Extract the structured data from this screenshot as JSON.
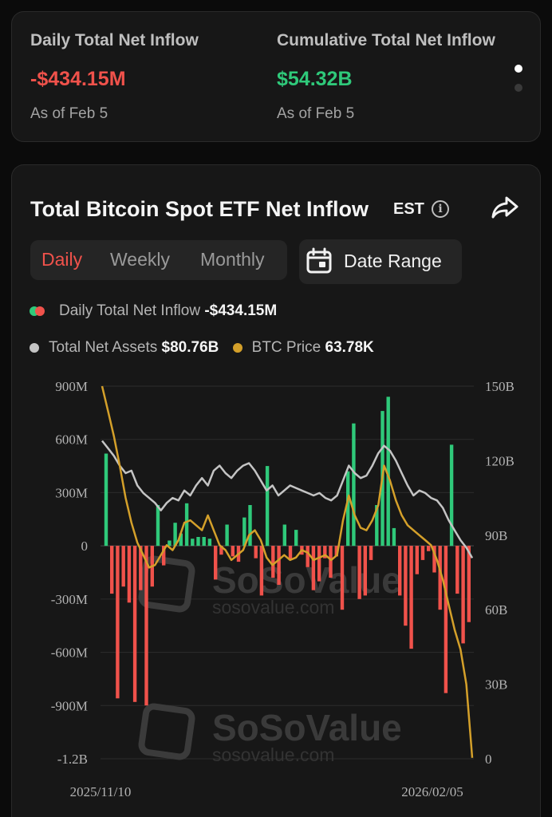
{
  "summary": {
    "daily": {
      "title": "Daily Total Net Inflow",
      "value": "-$434.15M",
      "date": "As of Feb 5"
    },
    "cumulative": {
      "title": "Cumulative Total Net Inflow",
      "value": "$54.32B",
      "date": "As of Feb 5"
    }
  },
  "chart_header": {
    "title": "Total Bitcoin Spot ETF Net Inflow",
    "timezone": "EST",
    "info_icon": "info-icon",
    "share_icon": "share-icon"
  },
  "tabs": [
    "Daily",
    "Weekly",
    "Monthly"
  ],
  "active_tab": "Daily",
  "date_range_label": "Date Range",
  "legend": {
    "inflow_label": "Daily Total Net Inflow",
    "inflow_value": "-$434.15M",
    "assets_label": "Total Net Assets",
    "assets_value": "$80.76B",
    "btc_label": "BTC Price",
    "btc_value": "63.78K"
  },
  "watermark": {
    "brand": "SoSoValue",
    "url": "sosovalue.com"
  },
  "colors": {
    "positive": "#2fc97a",
    "negative": "#f0524b",
    "assets_line": "#c4c4c4",
    "btc_line": "#d4a02a"
  },
  "chart_data": {
    "type": "bar",
    "x_start_label": "2025/11/10",
    "x_end_label": "2026/02/05",
    "left_axis": {
      "ticks": [
        900,
        600,
        300,
        0,
        -300,
        -600,
        -900,
        -1200
      ],
      "tick_labels": [
        "900M",
        "600M",
        "300M",
        "0",
        "-300M",
        "-600M",
        "-900M",
        "-1.2B"
      ],
      "range": [
        -1200,
        900
      ],
      "unit": "M"
    },
    "right_axis": {
      "ticks": [
        150,
        120,
        90,
        60,
        30,
        0
      ],
      "tick_labels": [
        "150B",
        "120B",
        "90B",
        "60B",
        "30B",
        "0"
      ],
      "range": [
        0,
        150
      ],
      "unit": "B"
    },
    "series": [
      {
        "name": "Daily Total Net Inflow",
        "type": "bar",
        "values": [
          520,
          -270,
          -860,
          -230,
          -320,
          -880,
          -250,
          -900,
          -230,
          230,
          -110,
          30,
          130,
          70,
          240,
          40,
          50,
          50,
          40,
          -190,
          -50,
          120,
          -60,
          -90,
          160,
          230,
          -70,
          -280,
          450,
          -180,
          -220,
          120,
          -80,
          90,
          -50,
          -120,
          -250,
          -200,
          -70,
          -180,
          -60,
          -360,
          420,
          690,
          -300,
          -280,
          -80,
          230,
          760,
          840,
          100,
          -280,
          -450,
          -580,
          -160,
          -80,
          -30,
          -150,
          -360,
          -830,
          570,
          -270,
          -550,
          -430
        ]
      },
      {
        "name": "Total Net Assets",
        "type": "line",
        "values": [
          128,
          125,
          122,
          118,
          115,
          116,
          110,
          107,
          105,
          103,
          100,
          103,
          105,
          104,
          108,
          106,
          110,
          113,
          110,
          116,
          118,
          115,
          113,
          116,
          118,
          119,
          116,
          112,
          108,
          110,
          106,
          108,
          110,
          109,
          108,
          107,
          106,
          107,
          105,
          104,
          106,
          112,
          118,
          115,
          113,
          114,
          118,
          123,
          126,
          124,
          120,
          115,
          110,
          106,
          108,
          107,
          105,
          104,
          101,
          96,
          92,
          88,
          85,
          80.8
        ]
      },
      {
        "name": "BTC Price",
        "type": "line",
        "values": [
          150,
          140,
          130,
          118,
          105,
          95,
          87,
          82,
          77,
          78,
          82,
          86,
          84,
          88,
          95,
          96,
          94,
          92,
          98,
          92,
          86,
          84,
          80,
          82,
          84,
          90,
          92,
          88,
          81,
          78,
          80,
          82,
          80,
          81,
          84,
          83,
          80,
          81,
          82,
          80,
          82,
          96,
          106,
          98,
          93,
          92,
          96,
          102,
          118,
          112,
          104,
          98,
          94,
          92,
          90,
          88,
          86,
          80,
          72,
          62,
          52,
          44,
          30,
          0.4
        ]
      }
    ]
  }
}
